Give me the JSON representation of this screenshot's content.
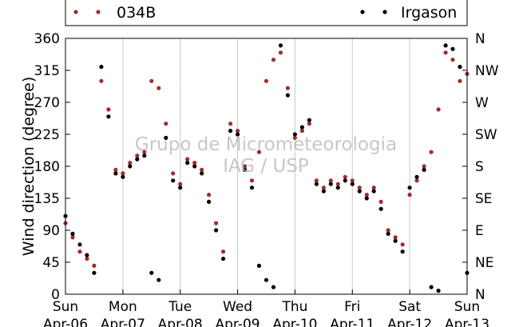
{
  "chart_data": {
    "type": "scatter",
    "ylabel": "Wind direction (degree)",
    "xlabel": "",
    "ylim": [
      0,
      360
    ],
    "xlim": [
      "2013-04-06",
      "2013-04-13"
    ],
    "yticks": [
      "0",
      "45",
      "90",
      "135",
      "180",
      "225",
      "270",
      "315",
      "360"
    ],
    "compass_ticks": [
      "N",
      "NE",
      "E",
      "SE",
      "S",
      "SW",
      "W",
      "NW",
      "N"
    ],
    "xtick_days": [
      "Sun",
      "Mon",
      "Tue",
      "Wed",
      "Thu",
      "Fri",
      "Sat",
      "Sun"
    ],
    "xtick_dates": [
      "Apr-06",
      "Apr-07",
      "Apr-08",
      "Apr-09",
      "Apr-10",
      "Apr-11",
      "Apr-12",
      "Apr-13"
    ],
    "grid": "vertical, at each day",
    "legend_position": "top",
    "watermark": [
      "Grupo de Micrometeorologia",
      "IAG / USP"
    ],
    "series": [
      {
        "name": "034B",
        "color": "#a52a2a",
        "x": [
          "2013-04-06 00:00",
          "2013-04-06 03:00",
          "2013-04-06 06:00",
          "2013-04-06 09:00",
          "2013-04-06 12:00",
          "2013-04-06 15:00",
          "2013-04-06 18:00",
          "2013-04-06 21:00",
          "2013-04-07 00:00",
          "2013-04-07 03:00",
          "2013-04-07 06:00",
          "2013-04-07 09:00",
          "2013-04-07 12:00",
          "2013-04-07 15:00",
          "2013-04-07 18:00",
          "2013-04-07 21:00",
          "2013-04-08 00:00",
          "2013-04-08 03:00",
          "2013-04-08 06:00",
          "2013-04-08 09:00",
          "2013-04-08 12:00",
          "2013-04-08 15:00",
          "2013-04-08 18:00",
          "2013-04-08 21:00",
          "2013-04-09 00:00",
          "2013-04-09 03:00",
          "2013-04-09 06:00",
          "2013-04-09 09:00",
          "2013-04-09 12:00",
          "2013-04-09 15:00",
          "2013-04-09 18:00",
          "2013-04-09 21:00",
          "2013-04-10 00:00",
          "2013-04-10 03:00",
          "2013-04-10 06:00",
          "2013-04-10 09:00",
          "2013-04-10 12:00",
          "2013-04-10 15:00",
          "2013-04-10 18:00",
          "2013-04-10 21:00",
          "2013-04-11 00:00",
          "2013-04-11 03:00",
          "2013-04-11 06:00",
          "2013-04-11 09:00",
          "2013-04-11 12:00",
          "2013-04-11 15:00",
          "2013-04-11 18:00",
          "2013-04-11 21:00",
          "2013-04-12 00:00",
          "2013-04-12 03:00",
          "2013-04-12 06:00",
          "2013-04-12 09:00",
          "2013-04-12 12:00",
          "2013-04-12 15:00",
          "2013-04-12 18:00",
          "2013-04-12 21:00",
          "2013-04-13 00:00"
        ],
        "y": [
          100,
          80,
          60,
          50,
          40,
          300,
          260,
          175,
          170,
          185,
          195,
          200,
          300,
          290,
          240,
          170,
          155,
          190,
          185,
          175,
          140,
          100,
          60,
          240,
          230,
          180,
          160,
          200,
          300,
          330,
          340,
          290,
          220,
          230,
          240,
          160,
          150,
          160,
          155,
          165,
          160,
          150,
          140,
          150,
          130,
          90,
          80,
          70,
          140,
          160,
          180,
          200,
          260,
          340,
          330,
          300,
          310
        ]
      },
      {
        "name": "Irgason",
        "color": "#000000",
        "x": [
          "2013-04-06 00:00",
          "2013-04-06 03:00",
          "2013-04-06 06:00",
          "2013-04-06 09:00",
          "2013-04-06 12:00",
          "2013-04-06 15:00",
          "2013-04-06 18:00",
          "2013-04-06 21:00",
          "2013-04-07 00:00",
          "2013-04-07 03:00",
          "2013-04-07 06:00",
          "2013-04-07 09:00",
          "2013-04-07 12:00",
          "2013-04-07 15:00",
          "2013-04-07 18:00",
          "2013-04-07 21:00",
          "2013-04-08 00:00",
          "2013-04-08 03:00",
          "2013-04-08 06:00",
          "2013-04-08 09:00",
          "2013-04-08 12:00",
          "2013-04-08 15:00",
          "2013-04-08 18:00",
          "2013-04-08 21:00",
          "2013-04-09 00:00",
          "2013-04-09 03:00",
          "2013-04-09 06:00",
          "2013-04-09 09:00",
          "2013-04-09 12:00",
          "2013-04-09 15:00",
          "2013-04-09 18:00",
          "2013-04-09 21:00",
          "2013-04-10 00:00",
          "2013-04-10 03:00",
          "2013-04-10 06:00",
          "2013-04-10 09:00",
          "2013-04-10 12:00",
          "2013-04-10 15:00",
          "2013-04-10 18:00",
          "2013-04-10 21:00",
          "2013-04-11 00:00",
          "2013-04-11 03:00",
          "2013-04-11 06:00",
          "2013-04-11 09:00",
          "2013-04-11 12:00",
          "2013-04-11 15:00",
          "2013-04-11 18:00",
          "2013-04-11 21:00",
          "2013-04-12 00:00",
          "2013-04-12 03:00",
          "2013-04-12 06:00",
          "2013-04-12 09:00",
          "2013-04-12 12:00",
          "2013-04-12 15:00",
          "2013-04-12 18:00",
          "2013-04-12 21:00",
          "2013-04-13 00:00"
        ],
        "y": [
          110,
          85,
          70,
          55,
          30,
          320,
          250,
          170,
          165,
          180,
          190,
          195,
          30,
          20,
          220,
          160,
          150,
          185,
          180,
          170,
          130,
          90,
          50,
          230,
          225,
          175,
          150,
          40,
          20,
          10,
          350,
          280,
          225,
          235,
          245,
          155,
          145,
          155,
          150,
          160,
          155,
          145,
          135,
          145,
          120,
          85,
          75,
          60,
          150,
          165,
          175,
          10,
          5,
          350,
          345,
          320,
          30
        ]
      }
    ]
  }
}
